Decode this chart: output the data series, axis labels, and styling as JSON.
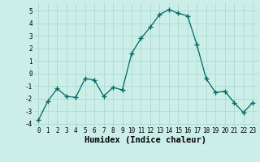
{
  "x": [
    0,
    1,
    2,
    3,
    4,
    5,
    6,
    7,
    8,
    9,
    10,
    11,
    12,
    13,
    14,
    15,
    16,
    17,
    18,
    19,
    20,
    21,
    22,
    23
  ],
  "y": [
    -3.7,
    -2.2,
    -1.2,
    -1.8,
    -1.9,
    -0.4,
    -0.5,
    -1.8,
    -1.1,
    -1.3,
    1.6,
    2.8,
    3.7,
    4.7,
    5.1,
    4.8,
    4.6,
    2.3,
    -0.4,
    -1.5,
    -1.4,
    -2.3,
    -3.1,
    -2.3
  ],
  "line_color": "#006666",
  "marker": "+",
  "marker_size": 4,
  "bg_color": "#cceee8",
  "grid_color": "#aaddcc",
  "xlabel": "Humidex (Indice chaleur)",
  "xlim": [
    -0.5,
    23.5
  ],
  "ylim": [
    -4.2,
    5.6
  ],
  "yticks": [
    -4,
    -3,
    -2,
    -1,
    0,
    1,
    2,
    3,
    4,
    5
  ],
  "xticks": [
    0,
    1,
    2,
    3,
    4,
    5,
    6,
    7,
    8,
    9,
    10,
    11,
    12,
    13,
    14,
    15,
    16,
    17,
    18,
    19,
    20,
    21,
    22,
    23
  ],
  "tick_label_fontsize": 5.5,
  "xlabel_fontsize": 7.5
}
